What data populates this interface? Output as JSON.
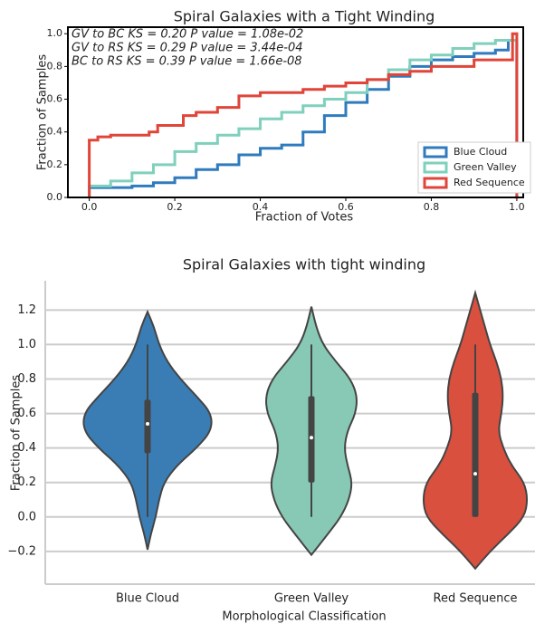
{
  "chart_data": [
    {
      "type": "step",
      "title": "Spiral Galaxies with a Tight Winding",
      "x_label": "Fraction of Votes",
      "y_label": "Fraction of Samples",
      "annotations": [
        "GV to BC KS = 0.20 P value = 1.08e-02",
        "GV to RS KS = 0.29 P value = 3.44e-04",
        "BC to RS KS = 0.39 P value = 1.66e-08"
      ],
      "xlim": [
        -0.05,
        1.015
      ],
      "ylim": [
        0,
        1.04
      ],
      "xticks": [
        {
          "value": 0,
          "label": "0.0"
        },
        {
          "value": 0.2,
          "label": "0.2"
        },
        {
          "value": 0.4,
          "label": "0.4"
        },
        {
          "value": 0.6,
          "label": "0.6"
        },
        {
          "value": 0.8,
          "label": "0.8"
        },
        {
          "value": 1,
          "label": "1.0"
        }
      ],
      "yticks": [
        {
          "value": 0,
          "label": "0.0"
        },
        {
          "value": 0.2,
          "label": "0.2"
        },
        {
          "value": 0.4,
          "label": "0.4"
        },
        {
          "value": 0.6,
          "label": "0.6"
        },
        {
          "value": 0.8,
          "label": "0.8"
        },
        {
          "value": 1,
          "label": "1.0"
        }
      ],
      "legend": "lower right",
      "series": [
        {
          "name": "Blue Cloud",
          "color": "#2f7bbd",
          "x": [
            0,
            0.1,
            0.15,
            0.2,
            0.25,
            0.3,
            0.35,
            0.4,
            0.45,
            0.5,
            0.55,
            0.6,
            0.65,
            0.7,
            0.75,
            0.8,
            0.85,
            0.9,
            0.95,
            0.98,
            1
          ],
          "values": [
            0.06,
            0.07,
            0.09,
            0.12,
            0.17,
            0.2,
            0.26,
            0.3,
            0.32,
            0.4,
            0.5,
            0.58,
            0.66,
            0.74,
            0.8,
            0.84,
            0.86,
            0.88,
            0.9,
            0.96,
            0
          ]
        },
        {
          "name": "Green Valley",
          "color": "#7fd0bc",
          "x": [
            0,
            0.05,
            0.1,
            0.15,
            0.2,
            0.25,
            0.3,
            0.35,
            0.4,
            0.45,
            0.5,
            0.55,
            0.6,
            0.65,
            0.7,
            0.75,
            0.8,
            0.85,
            0.9,
            0.95,
            1
          ],
          "values": [
            0.07,
            0.1,
            0.15,
            0.2,
            0.28,
            0.33,
            0.38,
            0.42,
            0.48,
            0.52,
            0.56,
            0.6,
            0.64,
            0.72,
            0.78,
            0.84,
            0.87,
            0.91,
            0.94,
            0.96,
            0
          ]
        },
        {
          "name": "Red Sequence",
          "color": "#e0453a",
          "x": [
            0,
            0.02,
            0.05,
            0.14,
            0.16,
            0.22,
            0.25,
            0.3,
            0.35,
            0.4,
            0.5,
            0.55,
            0.6,
            0.65,
            0.7,
            0.75,
            0.8,
            0.9,
            0.99,
            1
          ],
          "values": [
            0.35,
            0.37,
            0.38,
            0.4,
            0.44,
            0.5,
            0.52,
            0.55,
            0.62,
            0.64,
            0.66,
            0.68,
            0.7,
            0.72,
            0.75,
            0.77,
            0.8,
            0.84,
            1,
            0
          ]
        }
      ]
    },
    {
      "type": "violin",
      "title": "Spiral Galaxies with tight winding",
      "x_label": "Morphological Classification",
      "y_label": "Fraction of Samples",
      "ylim": [
        -0.39,
        1.37
      ],
      "yticks": [
        {
          "value": -0.2,
          "label": "−0.2"
        },
        {
          "value": 0,
          "label": "0.0"
        },
        {
          "value": 0.2,
          "label": "0.2"
        },
        {
          "value": 0.4,
          "label": "0.4"
        },
        {
          "value": 0.6,
          "label": "0.6"
        },
        {
          "value": 0.8,
          "label": "0.8"
        },
        {
          "value": 1,
          "label": "1.0"
        },
        {
          "value": 1.2,
          "label": "1.2"
        }
      ],
      "grid": true,
      "categories": [
        "Blue Cloud",
        "Green Valley",
        "Red Sequence"
      ],
      "series": [
        {
          "color": "#3a7db4",
          "q1": 0.37,
          "median": 0.54,
          "q3": 0.68,
          "whisker_low": 0,
          "whisker_high": 1,
          "violin_y": [
            -0.19,
            -0.1,
            0,
            0.1,
            0.2,
            0.3,
            0.4,
            0.5,
            0.6,
            0.7,
            0.8,
            0.9,
            1,
            1.1,
            1.19
          ],
          "violin_width": [
            0,
            0.02,
            0.05,
            0.07,
            0.1,
            0.18,
            0.3,
            0.39,
            0.39,
            0.3,
            0.2,
            0.12,
            0.07,
            0.04,
            0
          ]
        },
        {
          "color": "#87c9b5",
          "q1": 0.2,
          "median": 0.46,
          "q3": 0.7,
          "whisker_low": 0,
          "whisker_high": 1,
          "violin_y": [
            -0.22,
            -0.1,
            0,
            0.1,
            0.2,
            0.3,
            0.4,
            0.5,
            0.6,
            0.7,
            0.8,
            0.9,
            1,
            1.1,
            1.22
          ],
          "violin_width": [
            0,
            0.1,
            0.18,
            0.23,
            0.25,
            0.22,
            0.2,
            0.22,
            0.27,
            0.28,
            0.24,
            0.15,
            0.07,
            0.03,
            0
          ]
        },
        {
          "color": "#d9503f",
          "q1": 0,
          "median": 0.25,
          "q3": 0.72,
          "whisker_low": 0,
          "whisker_high": 1,
          "violin_y": [
            -0.3,
            -0.2,
            -0.1,
            0,
            0.1,
            0.2,
            0.3,
            0.4,
            0.5,
            0.6,
            0.7,
            0.8,
            0.9,
            1,
            1.1,
            1.2,
            1.3
          ],
          "violin_width": [
            0,
            0.09,
            0.2,
            0.3,
            0.32,
            0.3,
            0.22,
            0.17,
            0.14,
            0.16,
            0.17,
            0.16,
            0.13,
            0.09,
            0.06,
            0.03,
            0
          ]
        }
      ]
    }
  ]
}
